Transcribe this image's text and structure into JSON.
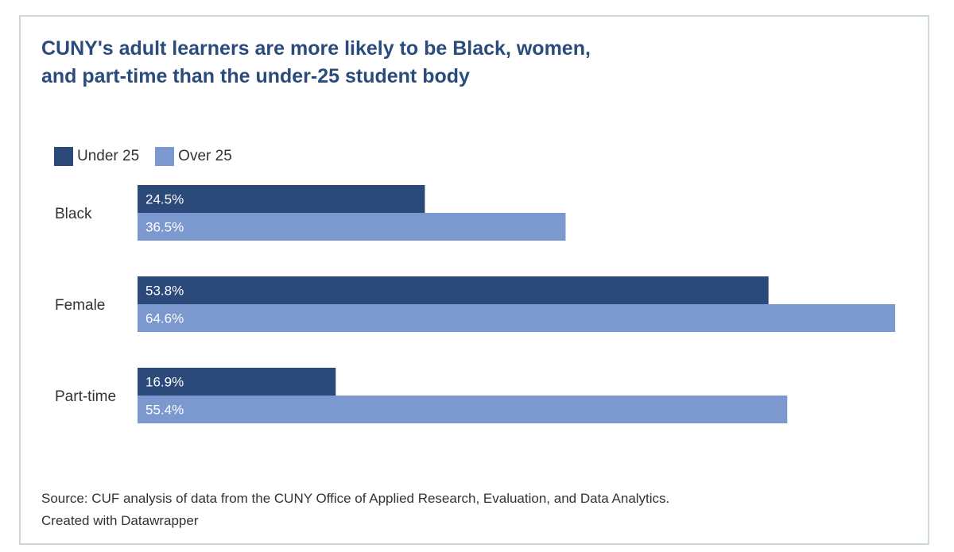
{
  "chart_data": {
    "type": "bar",
    "orientation": "horizontal",
    "title_lines": [
      "CUNY's adult learners are more likely to be Black, women,",
      "and part-time than the under-25 student body"
    ],
    "categories": [
      "Black",
      "Female",
      "Part-time"
    ],
    "series": [
      {
        "name": "Under 25",
        "color": "#2b4a7a",
        "values": [
          24.5,
          53.8,
          16.9
        ],
        "labels": [
          "24.5%",
          "53.8%",
          "16.9%"
        ]
      },
      {
        "name": "Over 25",
        "color": "#7b98cf",
        "values": [
          36.5,
          64.6,
          55.4
        ],
        "labels": [
          "36.5%",
          "64.6%",
          "55.4%"
        ]
      }
    ],
    "xlim": [
      0,
      64.6
    ],
    "grid": false,
    "legend": "top-left",
    "source_lines": [
      "Source: CUF analysis of data from the CUNY Office of Applied Research, Evaluation, and Data Analytics.",
      "Created with Datawrapper"
    ]
  }
}
